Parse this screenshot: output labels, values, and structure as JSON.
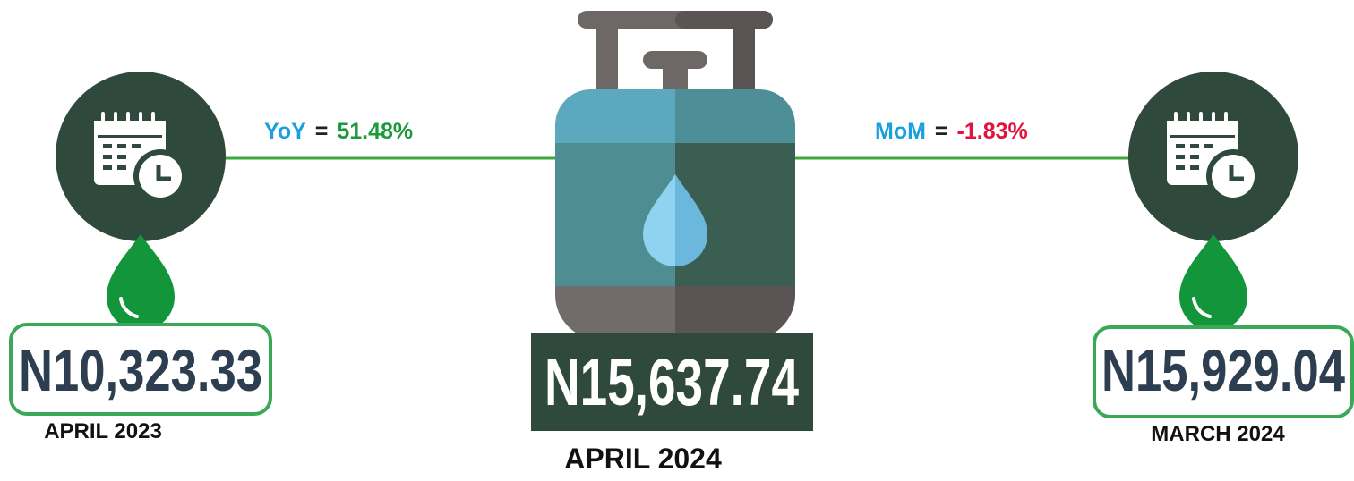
{
  "left": {
    "price": "N10,323.33",
    "period": "APRIL 2023"
  },
  "center": {
    "price": "N15,637.74",
    "period": "APRIL 2024"
  },
  "right": {
    "price": "N15,929.04",
    "period": "MARCH 2024"
  },
  "yoy": {
    "label": "YoY",
    "separator": "=",
    "value": "51.48%"
  },
  "mom": {
    "label": "MoM",
    "separator": "=",
    "value": "-1.83%"
  }
}
